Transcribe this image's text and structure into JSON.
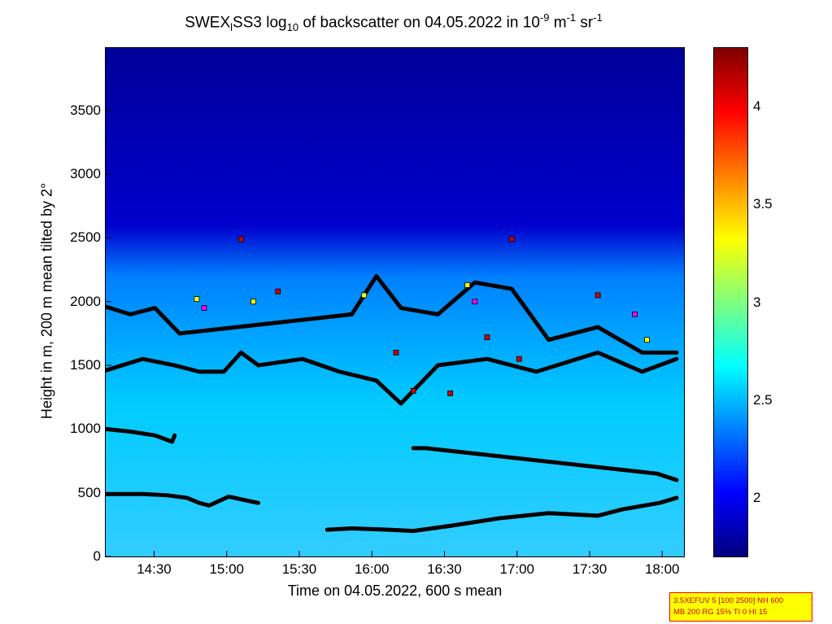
{
  "title": {
    "part1": "SWEX",
    "sub1": "l",
    "part2": "SS3 log",
    "sub2": "10",
    "part3": " of backscatter on 04.05.2022 in 10",
    "sup1": "-9",
    "part4": " m",
    "sup2": "-1",
    "part5": " sr",
    "sup3": "-1"
  },
  "info_box": {
    "line1": "3.5XEFUV 5 [100 2500] NH 600",
    "line2": "MB 200 RG 15% TI 0 HI 15"
  },
  "chart_data": {
    "type": "heatmap",
    "xlabel": "Time on 04.05.2022, 600 s mean",
    "ylabel": "Height in m, 200 m mean tilted by 2°",
    "x_ticks": [
      "14:30",
      "15:00",
      "15:30",
      "16:00",
      "16:30",
      "17:00",
      "17:30",
      "18:00"
    ],
    "y_ticks": [
      0,
      500,
      1000,
      1500,
      2000,
      2500,
      3000,
      3500
    ],
    "xlim": [
      "14:10",
      "18:09"
    ],
    "ylim": [
      0,
      3990
    ],
    "colorbar": {
      "range": [
        1.7,
        4.3
      ],
      "ticks": [
        2,
        2.5,
        3,
        3.5,
        4
      ],
      "colormap": "jet"
    },
    "colors": {
      "low": "#00008f",
      "mid": "#00c8ff",
      "high": "#7f0000"
    },
    "layer_markers": [
      {
        "name": "layer-1",
        "color": "#000000",
        "points": [
          [
            0,
            490
          ],
          [
            15,
            490
          ],
          [
            25,
            480
          ],
          [
            33,
            460
          ],
          [
            38,
            420
          ],
          [
            42,
            400
          ],
          [
            50,
            470
          ],
          [
            57,
            440
          ],
          [
            62,
            420
          ]
        ]
      },
      {
        "name": "layer-2",
        "color": "#000000",
        "points": [
          [
            90,
            210
          ],
          [
            100,
            220
          ],
          [
            115,
            210
          ],
          [
            125,
            200
          ],
          [
            140,
            240
          ],
          [
            160,
            300
          ],
          [
            180,
            340
          ],
          [
            200,
            320
          ],
          [
            210,
            370
          ],
          [
            225,
            420
          ],
          [
            232,
            460
          ]
        ]
      },
      {
        "name": "layer-3",
        "color": "#000000",
        "points": [
          [
            0,
            1000
          ],
          [
            10,
            980
          ],
          [
            20,
            950
          ],
          [
            27,
            900
          ],
          [
            28,
            950
          ]
        ]
      },
      {
        "name": "layer-4",
        "color": "#000000",
        "points": [
          [
            0,
            1460
          ],
          [
            15,
            1550
          ],
          [
            28,
            1500
          ],
          [
            38,
            1450
          ],
          [
            48,
            1450
          ],
          [
            55,
            1600
          ],
          [
            62,
            1500
          ],
          [
            80,
            1550
          ],
          [
            95,
            1450
          ],
          [
            110,
            1380
          ],
          [
            120,
            1200
          ],
          [
            135,
            1500
          ],
          [
            155,
            1550
          ],
          [
            175,
            1450
          ],
          [
            200,
            1600
          ],
          [
            218,
            1450
          ],
          [
            232,
            1550
          ]
        ]
      },
      {
        "name": "layer-5",
        "color": "#000000",
        "points": [
          [
            0,
            1960
          ],
          [
            10,
            1900
          ],
          [
            20,
            1950
          ],
          [
            30,
            1750
          ],
          [
            100,
            1900
          ],
          [
            110,
            2200
          ],
          [
            120,
            1950
          ],
          [
            135,
            1900
          ],
          [
            150,
            2150
          ],
          [
            165,
            2100
          ],
          [
            180,
            1700
          ],
          [
            200,
            1800
          ],
          [
            218,
            1600
          ],
          [
            232,
            1600
          ]
        ]
      },
      {
        "name": "layer-6",
        "color": "#000000",
        "points": [
          [
            125,
            850
          ],
          [
            130,
            850
          ],
          [
            224,
            650
          ],
          [
            232,
            600
          ]
        ]
      }
    ],
    "colored_markers": [
      {
        "x": 37,
        "y": 2020,
        "color": "#ffff00"
      },
      {
        "x": 40,
        "y": 1950,
        "color": "#ff00ff"
      },
      {
        "x": 55,
        "y": 2490,
        "color": "#cc0000"
      },
      {
        "x": 60,
        "y": 2000,
        "color": "#ffff00"
      },
      {
        "x": 70,
        "y": 2080,
        "color": "#cc0000"
      },
      {
        "x": 105,
        "y": 2050,
        "color": "#ffff00"
      },
      {
        "x": 118,
        "y": 1600,
        "color": "#cc0000"
      },
      {
        "x": 125,
        "y": 1300,
        "color": "#cc0000"
      },
      {
        "x": 147,
        "y": 2130,
        "color": "#ffff00"
      },
      {
        "x": 150,
        "y": 2000,
        "color": "#ff00ff"
      },
      {
        "x": 155,
        "y": 1720,
        "color": "#cc0000"
      },
      {
        "x": 165,
        "y": 2490,
        "color": "#cc0000"
      },
      {
        "x": 200,
        "y": 2050,
        "color": "#cc0000"
      },
      {
        "x": 215,
        "y": 1900,
        "color": "#ff00ff"
      },
      {
        "x": 220,
        "y": 1700,
        "color": "#ffff00"
      },
      {
        "x": 168,
        "y": 1550,
        "color": "#cc0000"
      },
      {
        "x": 140,
        "y": 1280,
        "color": "#cc0000"
      }
    ]
  }
}
